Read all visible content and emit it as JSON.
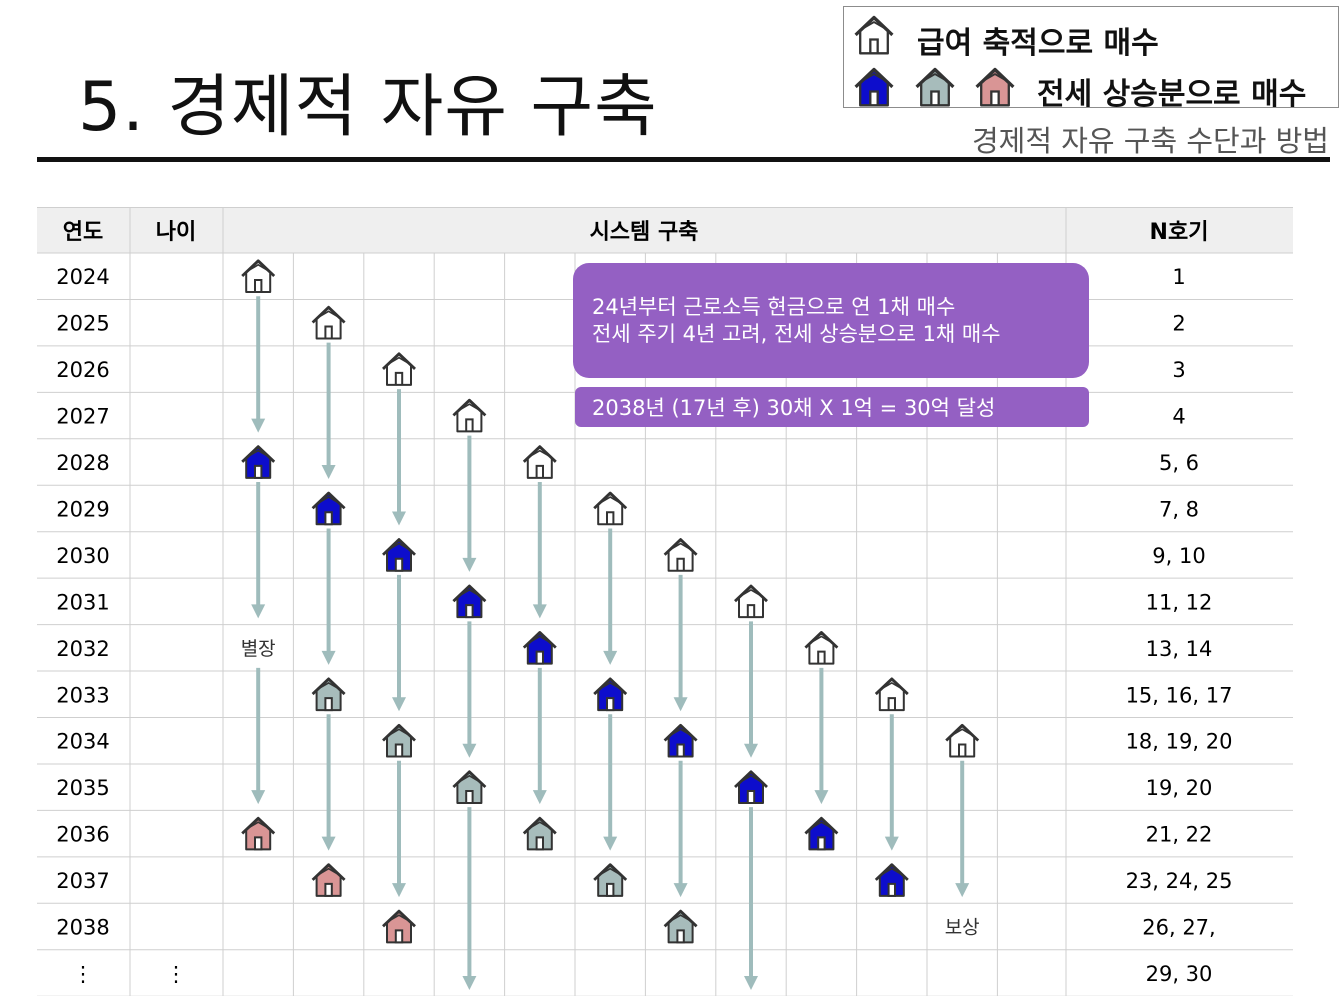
{
  "title": "5. 경제적 자유 구축",
  "subtitle": "경제적 자유 구축 수단과 방법",
  "legend": {
    "salary_label": "급여 축적으로 매수",
    "jeonse_label": "전세 상승분으로 매수"
  },
  "colors": {
    "salary": "#ffffff",
    "blue": "#0d0dcc",
    "gray": "#a7bcbb",
    "pink": "#d99595",
    "arrow": "#9fbcbc",
    "banner": "#9460c3"
  },
  "table": {
    "headers": {
      "year": "연도",
      "age": "나이",
      "system": "시스템 구축",
      "n": "N호기"
    },
    "rows": [
      {
        "year": "2024",
        "age": "",
        "n": "1"
      },
      {
        "year": "2025",
        "age": "",
        "n": "2"
      },
      {
        "year": "2026",
        "age": "",
        "n": "3"
      },
      {
        "year": "2027",
        "age": "",
        "n": "4"
      },
      {
        "year": "2028",
        "age": "",
        "n": "5, 6"
      },
      {
        "year": "2029",
        "age": "",
        "n": "7, 8"
      },
      {
        "year": "2030",
        "age": "",
        "n": "9, 10"
      },
      {
        "year": "2031",
        "age": "",
        "n": "11, 12"
      },
      {
        "year": "2032",
        "age": "",
        "n": "13, 14"
      },
      {
        "year": "2033",
        "age": "",
        "n": "15, 16, 17"
      },
      {
        "year": "2034",
        "age": "",
        "n": "18, 19, 20"
      },
      {
        "year": "2035",
        "age": "",
        "n": "19, 20"
      },
      {
        "year": "2036",
        "age": "",
        "n": "21, 22"
      },
      {
        "year": "2037",
        "age": "",
        "n": "23, 24, 25"
      },
      {
        "year": "2038",
        "age": "",
        "n": "26, 27,"
      },
      {
        "year": "⋮",
        "age": "⋮",
        "n": "29, 30"
      }
    ]
  },
  "houses": [
    {
      "col": 0,
      "row": 0,
      "type": "salary"
    },
    {
      "col": 1,
      "row": 1,
      "type": "salary"
    },
    {
      "col": 2,
      "row": 2,
      "type": "salary"
    },
    {
      "col": 3,
      "row": 3,
      "type": "salary"
    },
    {
      "col": 4,
      "row": 4,
      "type": "salary"
    },
    {
      "col": 5,
      "row": 5,
      "type": "salary"
    },
    {
      "col": 6,
      "row": 6,
      "type": "salary"
    },
    {
      "col": 7,
      "row": 7,
      "type": "salary"
    },
    {
      "col": 8,
      "row": 8,
      "type": "salary"
    },
    {
      "col": 9,
      "row": 9,
      "type": "salary"
    },
    {
      "col": 10,
      "row": 10,
      "type": "salary"
    },
    {
      "col": 0,
      "row": 4,
      "type": "blue"
    },
    {
      "col": 1,
      "row": 5,
      "type": "blue"
    },
    {
      "col": 2,
      "row": 6,
      "type": "blue"
    },
    {
      "col": 3,
      "row": 7,
      "type": "blue"
    },
    {
      "col": 4,
      "row": 8,
      "type": "blue"
    },
    {
      "col": 5,
      "row": 9,
      "type": "blue"
    },
    {
      "col": 6,
      "row": 10,
      "type": "blue"
    },
    {
      "col": 7,
      "row": 11,
      "type": "blue"
    },
    {
      "col": 8,
      "row": 12,
      "type": "blue"
    },
    {
      "col": 9,
      "row": 13,
      "type": "blue"
    },
    {
      "col": 1,
      "row": 9,
      "type": "gray"
    },
    {
      "col": 2,
      "row": 10,
      "type": "gray"
    },
    {
      "col": 3,
      "row": 11,
      "type": "gray"
    },
    {
      "col": 4,
      "row": 12,
      "type": "gray"
    },
    {
      "col": 5,
      "row": 13,
      "type": "gray"
    },
    {
      "col": 6,
      "row": 14,
      "type": "gray"
    },
    {
      "col": 0,
      "row": 12,
      "type": "pink"
    },
    {
      "col": 1,
      "row": 13,
      "type": "pink"
    },
    {
      "col": 2,
      "row": 14,
      "type": "pink"
    }
  ],
  "arrows": [
    {
      "col": 0,
      "from": 0,
      "to": 3
    },
    {
      "col": 0,
      "from": 4,
      "to": 7
    },
    {
      "col": 0,
      "from": 8,
      "to": 11
    },
    {
      "col": 1,
      "from": 1,
      "to": 4
    },
    {
      "col": 1,
      "from": 5,
      "to": 8
    },
    {
      "col": 1,
      "from": 9,
      "to": 12
    },
    {
      "col": 2,
      "from": 2,
      "to": 5
    },
    {
      "col": 2,
      "from": 6,
      "to": 9
    },
    {
      "col": 2,
      "from": 10,
      "to": 13
    },
    {
      "col": 3,
      "from": 3,
      "to": 6
    },
    {
      "col": 3,
      "from": 7,
      "to": 10
    },
    {
      "col": 3,
      "from": 11,
      "to": 15
    },
    {
      "col": 4,
      "from": 4,
      "to": 7
    },
    {
      "col": 4,
      "from": 8,
      "to": 11
    },
    {
      "col": 5,
      "from": 5,
      "to": 8
    },
    {
      "col": 5,
      "from": 9,
      "to": 12
    },
    {
      "col": 6,
      "from": 6,
      "to": 9
    },
    {
      "col": 6,
      "from": 10,
      "to": 13
    },
    {
      "col": 7,
      "from": 7,
      "to": 10
    },
    {
      "col": 7,
      "from": 11,
      "to": 15
    },
    {
      "col": 8,
      "from": 8,
      "to": 11
    },
    {
      "col": 9,
      "from": 9,
      "to": 12
    },
    {
      "col": 10,
      "from": 10,
      "to": 13
    }
  ],
  "notes": [
    {
      "text": "별장",
      "col": 0,
      "row": 8
    },
    {
      "text": "보상",
      "col": 10,
      "row": 14
    }
  ],
  "banners": {
    "plan_line1": "24년부터 근로소득 현금으로 연 1채 매수",
    "plan_line2": "전세 주기 4년 고려, 전세 상승분으로 1채 매수",
    "goal": "2038년 (17년  후) 30채 X 1억 = 30억 달성"
  }
}
